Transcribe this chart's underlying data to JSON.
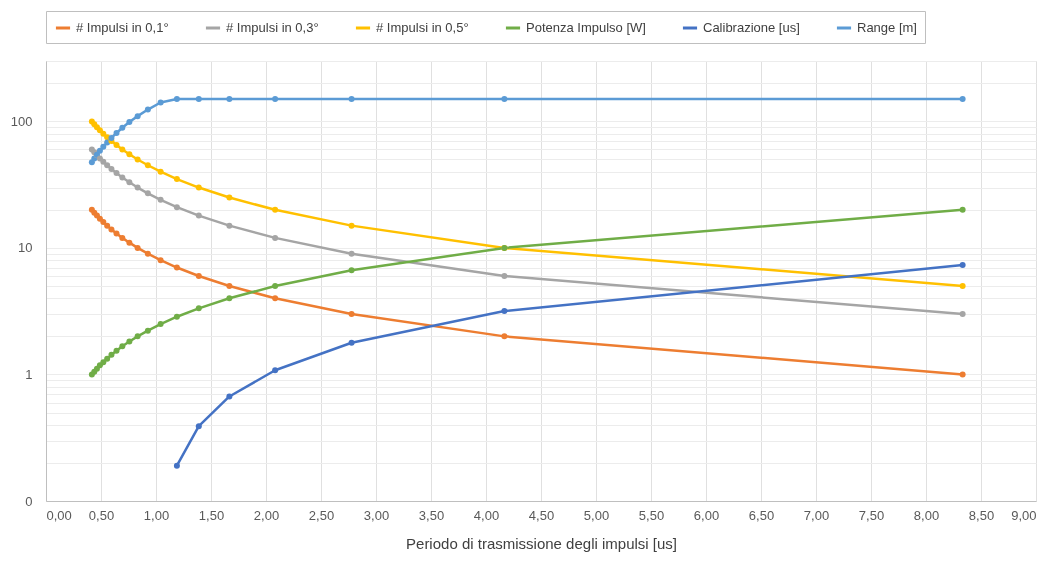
{
  "chart_data": {
    "type": "line",
    "xlabel": "Periodo di trasmissione degli impulsi [us]",
    "x": [
      0.417,
      0.439,
      0.463,
      0.49,
      0.521,
      0.556,
      0.595,
      0.641,
      0.694,
      0.758,
      0.833,
      0.926,
      1.042,
      1.19,
      1.389,
      1.667,
      2.083,
      2.778,
      4.167,
      8.333
    ],
    "series": [
      {
        "name": "# Impulsi in 0,1°",
        "color": "#ed7d31",
        "values": [
          20,
          19,
          18,
          17,
          16,
          15,
          14,
          13,
          12,
          11,
          10,
          9,
          8,
          7,
          6,
          5,
          4,
          3,
          2,
          1
        ]
      },
      {
        "name": "# Impulsi in 0,3°",
        "color": "#a5a5a5",
        "values": [
          60,
          57,
          54,
          51,
          48,
          45,
          42,
          39,
          36,
          33,
          30,
          27,
          24,
          21,
          18,
          15,
          12,
          9,
          6,
          3
        ]
      },
      {
        "name": "# Impulsi in 0,5°",
        "color": "#ffc000",
        "values": [
          100,
          95,
          90,
          85,
          80,
          75,
          70,
          65,
          60,
          55,
          50,
          45,
          40,
          35,
          30,
          25,
          20,
          15,
          10,
          5
        ]
      },
      {
        "name": "Potenza Impulso [W]",
        "color": "#70ad47",
        "values": [
          1,
          1.05,
          1.11,
          1.18,
          1.25,
          1.33,
          1.43,
          1.54,
          1.67,
          1.82,
          2,
          2.22,
          2.5,
          2.86,
          3.33,
          4,
          5,
          6.67,
          10,
          20
        ]
      },
      {
        "name": "Calibrazione [us]",
        "color": "#4472c4",
        "values": [
          null,
          null,
          null,
          null,
          null,
          null,
          null,
          null,
          null,
          null,
          null,
          null,
          null,
          0.19,
          0.39,
          0.67,
          1.08,
          1.78,
          3.17,
          7.33
        ]
      },
      {
        "name": "Range [m]",
        "color": "#5b9bd5",
        "values": [
          47.5,
          51,
          54.5,
          58.5,
          63,
          68,
          74,
          81,
          89,
          99,
          110,
          124,
          141,
          150,
          150,
          150,
          150,
          150,
          150,
          150
        ]
      }
    ],
    "log": true,
    "ylim": [
      0.1,
      300
    ],
    "yticks": [
      {
        "value": 0.1,
        "label": "0"
      },
      {
        "value": 0.2,
        "label": null
      },
      {
        "value": 0.3,
        "label": null
      },
      {
        "value": 0.4,
        "label": null
      },
      {
        "value": 0.5,
        "label": null
      },
      {
        "value": 0.6,
        "label": null
      },
      {
        "value": 0.7,
        "label": null
      },
      {
        "value": 0.8,
        "label": null
      },
      {
        "value": 0.9,
        "label": null
      },
      1,
      {
        "value": 2,
        "label": null
      },
      {
        "value": 3,
        "label": null
      },
      {
        "value": 4,
        "label": null
      },
      {
        "value": 5,
        "label": null
      },
      {
        "value": 6,
        "label": null
      },
      {
        "value": 7,
        "label": null
      },
      {
        "value": 8,
        "label": null
      },
      {
        "value": 9,
        "label": null
      },
      10,
      {
        "value": 20,
        "label": null
      },
      {
        "value": 30,
        "label": null
      },
      {
        "value": 40,
        "label": null
      },
      {
        "value": 50,
        "label": null
      },
      {
        "value": 60,
        "label": null
      },
      {
        "value": 70,
        "label": null
      },
      {
        "value": 80,
        "label": null
      },
      {
        "value": 90,
        "label": null
      },
      100,
      {
        "value": 200,
        "label": null
      },
      {
        "value": 300,
        "label": null
      }
    ],
    "xlim": [
      0,
      9
    ],
    "xticks": [
      {
        "value": 0,
        "label": "0,00"
      },
      {
        "value": 0.5,
        "label": "0,50"
      },
      {
        "value": 1,
        "label": "1,00"
      },
      {
        "value": 1.5,
        "label": "1,50"
      },
      {
        "value": 2,
        "label": "2,00"
      },
      {
        "value": 2.5,
        "label": "2,50"
      },
      {
        "value": 3,
        "label": "3,00"
      },
      {
        "value": 3.5,
        "label": "3,50"
      },
      {
        "value": 4,
        "label": "4,00"
      },
      {
        "value": 4.5,
        "label": "4,50"
      },
      {
        "value": 5,
        "label": "5,00"
      },
      {
        "value": 5.5,
        "label": "5,50"
      },
      {
        "value": 6,
        "label": "6,00"
      },
      {
        "value": 6.5,
        "label": "6,50"
      },
      {
        "value": 7,
        "label": "7,00"
      },
      {
        "value": 7.5,
        "label": "7,50"
      },
      {
        "value": 8,
        "label": "8,00"
      },
      {
        "value": 8.5,
        "label": "8,50"
      },
      {
        "value": 9,
        "label": "9,00"
      }
    ],
    "grid": true,
    "legend": "top",
    "marker": "circle",
    "line_style": "solid"
  }
}
